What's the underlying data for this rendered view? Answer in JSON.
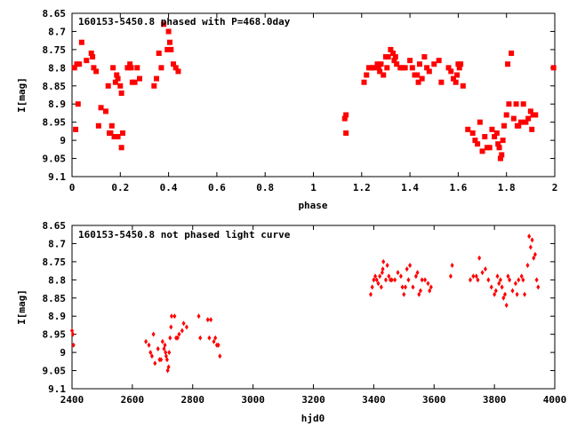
{
  "marker_color": "#ff0000",
  "chart_data": [
    {
      "type": "scatter",
      "title": "160153-5450.8 phased with P=468.0day",
      "xlabel": "phase",
      "ylabel": "I[mag]",
      "xlim": [
        0,
        2
      ],
      "ylim": [
        8.65,
        9.1
      ],
      "y_inverted": true,
      "grid": false,
      "legend": "none",
      "marker": "filled-square",
      "xticks": [
        "0",
        "0.2",
        "0.4",
        "0.6",
        "0.8",
        "1",
        "1.2",
        "1.4",
        "1.6",
        "1.8",
        "2"
      ],
      "yticks": [
        "8.65",
        "8.7",
        "8.75",
        "8.8",
        "8.85",
        "8.9",
        "8.95",
        "9",
        "9.05",
        "9.1"
      ],
      "points": [
        [
          0.01,
          8.8
        ],
        [
          0.02,
          8.79
        ],
        [
          0.03,
          8.79
        ],
        [
          0.015,
          8.97
        ],
        [
          0.025,
          8.9
        ],
        [
          0.04,
          8.73
        ],
        [
          0.06,
          8.78
        ],
        [
          0.08,
          8.76
        ],
        [
          0.085,
          8.77
        ],
        [
          0.09,
          8.8
        ],
        [
          0.1,
          8.81
        ],
        [
          0.11,
          8.96
        ],
        [
          0.12,
          8.91
        ],
        [
          0.14,
          8.92
        ],
        [
          0.15,
          8.85
        ],
        [
          0.155,
          8.98
        ],
        [
          0.16,
          8.98
        ],
        [
          0.165,
          8.96
        ],
        [
          0.17,
          8.8
        ],
        [
          0.175,
          8.99
        ],
        [
          0.18,
          8.84
        ],
        [
          0.185,
          8.82
        ],
        [
          0.19,
          8.99
        ],
        [
          0.19,
          8.83
        ],
        [
          0.2,
          8.85
        ],
        [
          0.205,
          8.87
        ],
        [
          0.205,
          9.02
        ],
        [
          0.21,
          8.98
        ],
        [
          0.23,
          8.8
        ],
        [
          0.24,
          8.79
        ],
        [
          0.245,
          8.8
        ],
        [
          0.25,
          8.84
        ],
        [
          0.26,
          8.84
        ],
        [
          0.27,
          8.8
        ],
        [
          0.28,
          8.83
        ],
        [
          0.34,
          8.85
        ],
        [
          0.35,
          8.83
        ],
        [
          0.36,
          8.76
        ],
        [
          0.37,
          8.8
        ],
        [
          0.38,
          8.68
        ],
        [
          0.395,
          8.75
        ],
        [
          0.4,
          8.7
        ],
        [
          0.405,
          8.73
        ],
        [
          0.41,
          8.75
        ],
        [
          0.42,
          8.79
        ],
        [
          0.43,
          8.8
        ],
        [
          0.44,
          8.81
        ],
        [
          1.13,
          8.94
        ],
        [
          1.135,
          8.93
        ],
        [
          1.135,
          8.98
        ],
        [
          1.21,
          8.84
        ],
        [
          1.22,
          8.82
        ],
        [
          1.23,
          8.8
        ],
        [
          1.24,
          8.8
        ],
        [
          1.25,
          8.8
        ],
        [
          1.265,
          8.79
        ],
        [
          1.27,
          8.8
        ],
        [
          1.275,
          8.81
        ],
        [
          1.28,
          8.79
        ],
        [
          1.29,
          8.82
        ],
        [
          1.3,
          8.77
        ],
        [
          1.305,
          8.8
        ],
        [
          1.31,
          8.77
        ],
        [
          1.32,
          8.75
        ],
        [
          1.33,
          8.76
        ],
        [
          1.335,
          8.78
        ],
        [
          1.34,
          8.77
        ],
        [
          1.345,
          8.79
        ],
        [
          1.36,
          8.8
        ],
        [
          1.37,
          8.8
        ],
        [
          1.38,
          8.8
        ],
        [
          1.4,
          8.78
        ],
        [
          1.41,
          8.8
        ],
        [
          1.42,
          8.82
        ],
        [
          1.43,
          8.82
        ],
        [
          1.435,
          8.84
        ],
        [
          1.44,
          8.79
        ],
        [
          1.45,
          8.83
        ],
        [
          1.46,
          8.77
        ],
        [
          1.47,
          8.8
        ],
        [
          1.48,
          8.81
        ],
        [
          1.5,
          8.79
        ],
        [
          1.52,
          8.78
        ],
        [
          1.53,
          8.84
        ],
        [
          1.56,
          8.8
        ],
        [
          1.57,
          8.81
        ],
        [
          1.58,
          8.83
        ],
        [
          1.59,
          8.84
        ],
        [
          1.595,
          8.82
        ],
        [
          1.6,
          8.79
        ],
        [
          1.605,
          8.8
        ],
        [
          1.61,
          8.79
        ],
        [
          1.62,
          8.85
        ],
        [
          1.64,
          8.97
        ],
        [
          1.66,
          8.98
        ],
        [
          1.67,
          9.0
        ],
        [
          1.68,
          9.01
        ],
        [
          1.69,
          8.95
        ],
        [
          1.7,
          9.03
        ],
        [
          1.71,
          8.99
        ],
        [
          1.72,
          9.02
        ],
        [
          1.73,
          9.02
        ],
        [
          1.74,
          8.97
        ],
        [
          1.75,
          8.99
        ],
        [
          1.76,
          8.98
        ],
        [
          1.765,
          9.01
        ],
        [
          1.77,
          9.02
        ],
        [
          1.775,
          9.05
        ],
        [
          1.78,
          9.04
        ],
        [
          1.785,
          9.0
        ],
        [
          1.79,
          8.96
        ],
        [
          1.8,
          8.93
        ],
        [
          1.805,
          8.79
        ],
        [
          1.81,
          8.9
        ],
        [
          1.82,
          8.76
        ],
        [
          1.83,
          8.94
        ],
        [
          1.84,
          8.9
        ],
        [
          1.845,
          8.96
        ],
        [
          1.85,
          8.96
        ],
        [
          1.86,
          8.95
        ],
        [
          1.87,
          8.9
        ],
        [
          1.88,
          8.95
        ],
        [
          1.89,
          8.94
        ],
        [
          1.9,
          8.92
        ],
        [
          1.905,
          8.97
        ],
        [
          1.91,
          8.93
        ],
        [
          1.92,
          8.93
        ],
        [
          1.995,
          8.8
        ]
      ]
    },
    {
      "type": "scatter",
      "title": "160153-5450.8 not phased light curve",
      "xlabel": "hjd0",
      "ylabel": "I[mag]",
      "xlim": [
        2400,
        4000
      ],
      "ylim": [
        8.65,
        9.1
      ],
      "y_inverted": true,
      "grid": false,
      "legend": "none",
      "marker": "small-diamond",
      "xticks": [
        "2400",
        "2600",
        "2800",
        "3000",
        "3200",
        "3400",
        "3600",
        "3800",
        "4000"
      ],
      "yticks": [
        "8.65",
        "8.7",
        "8.75",
        "8.8",
        "8.85",
        "8.9",
        "8.95",
        "9",
        "9.05",
        "9.1"
      ],
      "points": [
        [
          2400,
          8.94
        ],
        [
          2403,
          8.95
        ],
        [
          2405,
          8.98
        ],
        [
          2645,
          8.97
        ],
        [
          2655,
          8.98
        ],
        [
          2660,
          9.0
        ],
        [
          2665,
          9.01
        ],
        [
          2670,
          8.95
        ],
        [
          2675,
          9.03
        ],
        [
          2685,
          8.99
        ],
        [
          2690,
          9.02
        ],
        [
          2695,
          9.02
        ],
        [
          2700,
          8.97
        ],
        [
          2705,
          8.99
        ],
        [
          2708,
          8.98
        ],
        [
          2710,
          9.0
        ],
        [
          2712,
          9.01
        ],
        [
          2715,
          9.02
        ],
        [
          2717,
          9.05
        ],
        [
          2720,
          9.04
        ],
        [
          2722,
          9.0
        ],
        [
          2725,
          8.96
        ],
        [
          2728,
          8.93
        ],
        [
          2730,
          8.9
        ],
        [
          2740,
          8.9
        ],
        [
          2745,
          8.96
        ],
        [
          2750,
          8.96
        ],
        [
          2755,
          8.95
        ],
        [
          2765,
          8.94
        ],
        [
          2770,
          8.92
        ],
        [
          2780,
          8.93
        ],
        [
          2820,
          8.9
        ],
        [
          2825,
          8.96
        ],
        [
          2850,
          8.91
        ],
        [
          2855,
          8.96
        ],
        [
          2860,
          8.91
        ],
        [
          2870,
          8.97
        ],
        [
          2875,
          8.96
        ],
        [
          2880,
          8.98
        ],
        [
          2885,
          8.98
        ],
        [
          2890,
          9.01
        ],
        [
          3390,
          8.84
        ],
        [
          3395,
          8.82
        ],
        [
          3400,
          8.8
        ],
        [
          3405,
          8.79
        ],
        [
          3410,
          8.8
        ],
        [
          3415,
          8.81
        ],
        [
          3420,
          8.79
        ],
        [
          3425,
          8.82
        ],
        [
          3428,
          8.78
        ],
        [
          3430,
          8.77
        ],
        [
          3432,
          8.75
        ],
        [
          3440,
          8.8
        ],
        [
          3445,
          8.76
        ],
        [
          3450,
          8.79
        ],
        [
          3455,
          8.8
        ],
        [
          3460,
          8.8
        ],
        [
          3470,
          8.8
        ],
        [
          3480,
          8.78
        ],
        [
          3490,
          8.79
        ],
        [
          3495,
          8.82
        ],
        [
          3500,
          8.84
        ],
        [
          3505,
          8.82
        ],
        [
          3510,
          8.77
        ],
        [
          3515,
          8.8
        ],
        [
          3520,
          8.76
        ],
        [
          3530,
          8.82
        ],
        [
          3540,
          8.79
        ],
        [
          3545,
          8.78
        ],
        [
          3550,
          8.84
        ],
        [
          3555,
          8.83
        ],
        [
          3560,
          8.8
        ],
        [
          3570,
          8.8
        ],
        [
          3580,
          8.81
        ],
        [
          3585,
          8.83
        ],
        [
          3590,
          8.82
        ],
        [
          3655,
          8.79
        ],
        [
          3660,
          8.76
        ],
        [
          3720,
          8.8
        ],
        [
          3730,
          8.79
        ],
        [
          3740,
          8.79
        ],
        [
          3745,
          8.8
        ],
        [
          3750,
          8.74
        ],
        [
          3760,
          8.78
        ],
        [
          3770,
          8.77
        ],
        [
          3780,
          8.8
        ],
        [
          3790,
          8.82
        ],
        [
          3800,
          8.84
        ],
        [
          3805,
          8.83
        ],
        [
          3810,
          8.79
        ],
        [
          3815,
          8.81
        ],
        [
          3820,
          8.8
        ],
        [
          3825,
          8.82
        ],
        [
          3830,
          8.85
        ],
        [
          3835,
          8.84
        ],
        [
          3840,
          8.87
        ],
        [
          3845,
          8.79
        ],
        [
          3850,
          8.8
        ],
        [
          3860,
          8.83
        ],
        [
          3870,
          8.81
        ],
        [
          3875,
          8.84
        ],
        [
          3880,
          8.8
        ],
        [
          3890,
          8.79
        ],
        [
          3895,
          8.8
        ],
        [
          3900,
          8.84
        ],
        [
          3910,
          8.76
        ],
        [
          3915,
          8.68
        ],
        [
          3920,
          8.71
        ],
        [
          3925,
          8.69
        ],
        [
          3930,
          8.74
        ],
        [
          3935,
          8.73
        ],
        [
          3940,
          8.8
        ],
        [
          3945,
          8.82
        ]
      ]
    }
  ]
}
